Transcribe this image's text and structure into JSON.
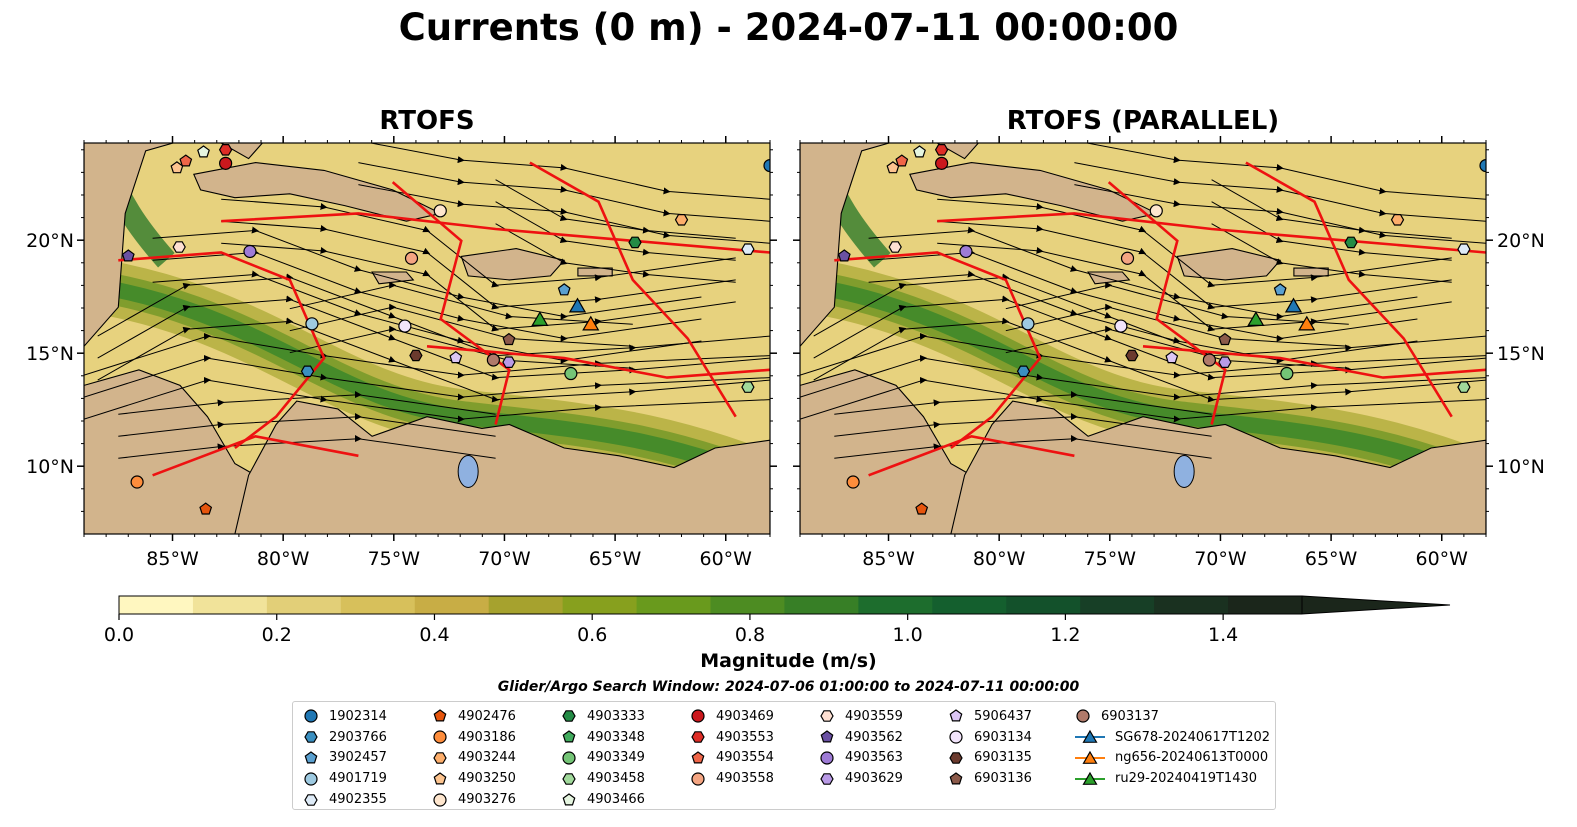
{
  "title": "Currents (0 m) - 2024-07-11 00:00:00",
  "maps": [
    {
      "title": "RTOFS"
    },
    {
      "title": "RTOFS (PARALLEL)"
    }
  ],
  "axes": {
    "lon_range": [
      -89,
      -58
    ],
    "lat_range": [
      7,
      24.3
    ],
    "lon_ticks": [
      {
        "value": -85,
        "label": "85°W"
      },
      {
        "value": -80,
        "label": "80°W"
      },
      {
        "value": -75,
        "label": "75°W"
      },
      {
        "value": -70,
        "label": "70°W"
      },
      {
        "value": -65,
        "label": "65°W"
      },
      {
        "value": -60,
        "label": "60°W"
      }
    ],
    "lat_ticks": [
      {
        "value": 20,
        "label": "20°N"
      },
      {
        "value": 15,
        "label": "15°N"
      },
      {
        "value": 10,
        "label": "10°N"
      }
    ]
  },
  "colorbar": {
    "label": "Magnitude (m/s)",
    "min": 0.0,
    "max": 1.5,
    "extend": "max",
    "tick_values": [
      0.0,
      0.2,
      0.4,
      0.6,
      0.8,
      1.0,
      1.2,
      1.4
    ],
    "tick_labels": [
      "0.0",
      "0.2",
      "0.4",
      "0.6",
      "0.8",
      "1.0",
      "1.2",
      "1.4"
    ],
    "colors": [
      "#fff7c0",
      "#f1e39a",
      "#e2cf78",
      "#d7c05b",
      "#c8ad45",
      "#a6a22e",
      "#87a01e",
      "#699a1d",
      "#4d8c22",
      "#377f26",
      "#1d6d2d",
      "#145f2e",
      "#13512b",
      "#173f26",
      "#1a3120",
      "#1b261b"
    ]
  },
  "search_window": "Glider/Argo Search Window: 2024-07-06 01:00:00 to 2024-07-11 00:00:00",
  "legend": [
    {
      "label": "1902314",
      "color": "#1f77b4",
      "marker": "circle"
    },
    {
      "label": "2903766",
      "color": "#3a8fc0",
      "marker": "hexagon"
    },
    {
      "label": "3902457",
      "color": "#5aa0d0",
      "marker": "pentagon"
    },
    {
      "label": "4901719",
      "color": "#9ecae1",
      "marker": "circle"
    },
    {
      "label": "4902355",
      "color": "#deebf7",
      "marker": "hexagon"
    },
    {
      "label": "4902476",
      "color": "#e6550d",
      "marker": "pentagon"
    },
    {
      "label": "4903186",
      "color": "#fd8d3c",
      "marker": "circle"
    },
    {
      "label": "4903244",
      "color": "#fdae6b",
      "marker": "hexagon"
    },
    {
      "label": "4903250",
      "color": "#fdc48f",
      "marker": "pentagon"
    },
    {
      "label": "4903276",
      "color": "#fee6ce",
      "marker": "circle"
    },
    {
      "label": "4903333",
      "color": "#238b45",
      "marker": "hexagon"
    },
    {
      "label": "4903348",
      "color": "#41ab5d",
      "marker": "pentagon"
    },
    {
      "label": "4903349",
      "color": "#74c476",
      "marker": "circle"
    },
    {
      "label": "4903458",
      "color": "#a1d99b",
      "marker": "hexagon"
    },
    {
      "label": "4903466",
      "color": "#e5f5e0",
      "marker": "pentagon"
    },
    {
      "label": "4903469",
      "color": "#cb181d",
      "marker": "circle"
    },
    {
      "label": "4903553",
      "color": "#de2d26",
      "marker": "hexagon"
    },
    {
      "label": "4903554",
      "color": "#ef6548",
      "marker": "pentagon"
    },
    {
      "label": "4903558",
      "color": "#f4a582",
      "marker": "circle"
    },
    {
      "label": "4903559",
      "color": "#fee0d2",
      "marker": "hexagon"
    },
    {
      "label": "4903562",
      "color": "#6a51a3",
      "marker": "pentagon"
    },
    {
      "label": "4903563",
      "color": "#9e7bd6",
      "marker": "circle"
    },
    {
      "label": "4903629",
      "color": "#b99ae6",
      "marker": "hexagon"
    },
    {
      "label": "5906437",
      "color": "#dcc6f5",
      "marker": "pentagon"
    },
    {
      "label": "6903134",
      "color": "#f2e4fb",
      "marker": "circle"
    },
    {
      "label": "6903135",
      "color": "#6b3a2e",
      "marker": "hexagon"
    },
    {
      "label": "6903136",
      "color": "#8c5a4a",
      "marker": "pentagon"
    },
    {
      "label": "6903137",
      "color": "#b07a6a",
      "marker": "circle"
    },
    {
      "label": "SG678-20240617T1202",
      "color": "#1f77b4",
      "marker": "triangle"
    },
    {
      "label": "ng656-20240613T0000",
      "color": "#ff7f0e",
      "marker": "triangle"
    },
    {
      "label": "ru29-20240419T1430",
      "color": "#2ca02c",
      "marker": "triangle"
    }
  ],
  "map_markers": [
    {
      "id": "1902314",
      "lon": -58.0,
      "lat": 23.3
    },
    {
      "id": "4903276",
      "lon": -72.9,
      "lat": 21.3
    },
    {
      "id": "4903244",
      "lon": -62.0,
      "lat": 20.9
    },
    {
      "id": "4903333",
      "lon": -64.1,
      "lat": 19.9
    },
    {
      "id": "4902355",
      "lon": -59.0,
      "lat": 19.6
    },
    {
      "id": "4903559",
      "lon": -84.7,
      "lat": 19.7
    },
    {
      "id": "4903563",
      "lon": -81.5,
      "lat": 19.5
    },
    {
      "id": "4903562",
      "lon": -87.0,
      "lat": 19.3
    },
    {
      "id": "4903558",
      "lon": -74.2,
      "lat": 19.2
    },
    {
      "id": "3902457",
      "lon": -67.3,
      "lat": 17.8
    },
    {
      "id": "6903134",
      "lon": -74.5,
      "lat": 16.2
    },
    {
      "id": "4901719",
      "lon": -78.7,
      "lat": 16.3
    },
    {
      "id": "6903136",
      "lon": -69.8,
      "lat": 15.6
    },
    {
      "id": "6903135",
      "lon": -74.0,
      "lat": 14.9
    },
    {
      "id": "5906437",
      "lon": -72.2,
      "lat": 14.8
    },
    {
      "id": "6903137",
      "lon": -70.5,
      "lat": 14.7
    },
    {
      "id": "4903629",
      "lon": -69.8,
      "lat": 14.6
    },
    {
      "id": "2903766",
      "lon": -78.9,
      "lat": 14.2
    },
    {
      "id": "4903349",
      "lon": -67.0,
      "lat": 14.1
    },
    {
      "id": "4903458",
      "lon": -59.0,
      "lat": 13.5
    },
    {
      "id": "4903186",
      "lon": -86.6,
      "lat": 9.3
    },
    {
      "id": "4902476",
      "lon": -83.5,
      "lat": 8.1
    },
    {
      "id": "4903469",
      "lon": -82.6,
      "lat": 23.4
    },
    {
      "id": "4903553",
      "lon": -82.6,
      "lat": 24.0
    },
    {
      "id": "4903554",
      "lon": -84.4,
      "lat": 23.5
    },
    {
      "id": "4903250",
      "lon": -84.8,
      "lat": 23.2
    },
    {
      "id": "4903466",
      "lon": -83.6,
      "lat": 23.9
    },
    {
      "id": "SG678-20240617T1202",
      "lon": -66.7,
      "lat": 17.1
    },
    {
      "id": "ng656-20240613T0000",
      "lon": -66.1,
      "lat": 16.3
    },
    {
      "id": "ru29-20240419T1430",
      "lon": -68.4,
      "lat": 16.5
    }
  ]
}
